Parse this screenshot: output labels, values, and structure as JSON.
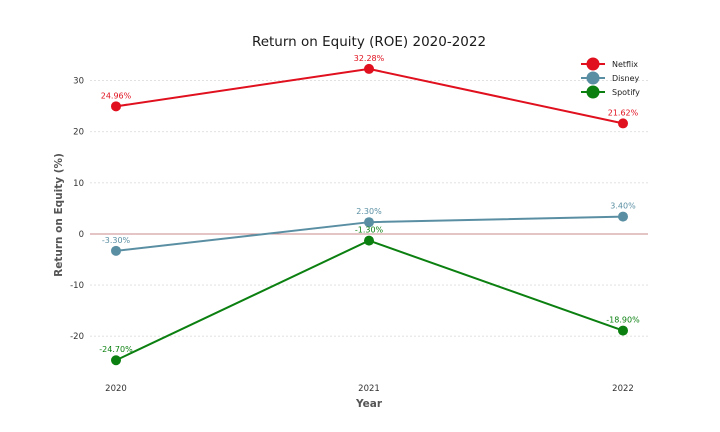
{
  "chart_data": {
    "type": "line",
    "title": "Return on Equity (ROE) 2020-2022",
    "xlabel": "Year",
    "ylabel": "Return on Equity (%)",
    "categories": [
      "2020",
      "2021",
      "2022"
    ],
    "ylim": [
      -27,
      35
    ],
    "yticks": [
      -20,
      -10,
      0,
      10,
      20,
      30
    ],
    "grid": true,
    "legend_position": "top-right",
    "zero_line_color": "#c98a8a",
    "series": [
      {
        "name": "Netflix",
        "color": "#e0101e",
        "values": [
          24.96,
          32.28,
          21.62
        ],
        "labels": [
          "24.96%",
          "32.28%",
          "21.62%"
        ]
      },
      {
        "name": "Disney",
        "color": "#5a8fa3",
        "values": [
          -3.3,
          2.3,
          3.4
        ],
        "labels": [
          "-3.30%",
          "2.30%",
          "3.40%"
        ]
      },
      {
        "name": "Spotify",
        "color": "#0b8010",
        "values": [
          -24.7,
          -1.3,
          -18.9
        ],
        "labels": [
          "-24.70%",
          "-1.30%",
          "-18.90%"
        ]
      }
    ]
  }
}
